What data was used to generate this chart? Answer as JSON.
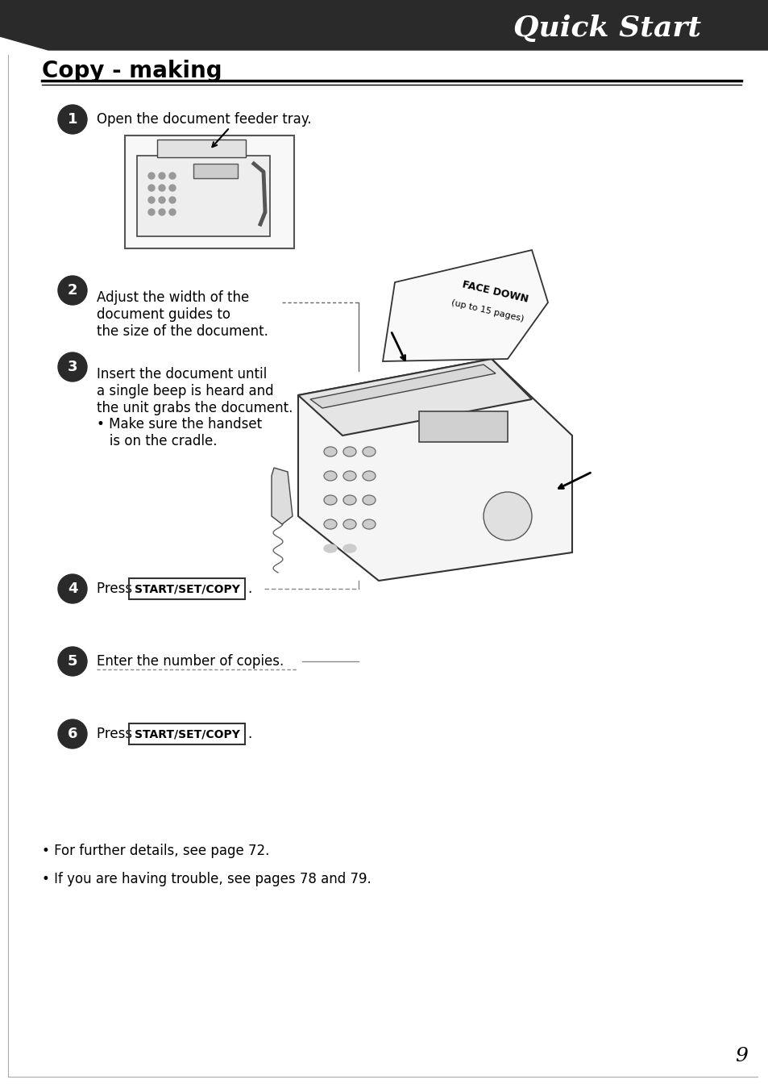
{
  "bg_color": "#ffffff",
  "header_bg": "#1a1a1a",
  "header_text": "Quick Start",
  "header_text_color": "#ffffff",
  "section_title": "Copy - making",
  "page_number": "9",
  "steps": [
    {
      "num": "1",
      "text": "Open the document feeder tray."
    },
    {
      "num": "2",
      "text": "Adjust the width of the\ndocument guides to\nthe size of the document."
    },
    {
      "num": "3",
      "text": "Insert the document until\na single beep is heard and\nthe unit grabs the document.\n• Make sure the handset\n   is on the cradle."
    },
    {
      "num": "4",
      "text": "Press [START/SET/COPY]."
    },
    {
      "num": "5",
      "text": "Enter the number of copies."
    },
    {
      "num": "6",
      "text": "Press [START/SET/COPY]."
    }
  ],
  "bullets": [
    "For further details, see page 72.",
    "If you are having trouble, see pages 78 and 79."
  ],
  "face_down_text": "FACE DOWN\n(up to 15 pages)",
  "circle_color": "#2a2a2a",
  "line_color": "#888888",
  "btn_edge_color": "#333333",
  "header_poly_color": "#2a2a2a"
}
